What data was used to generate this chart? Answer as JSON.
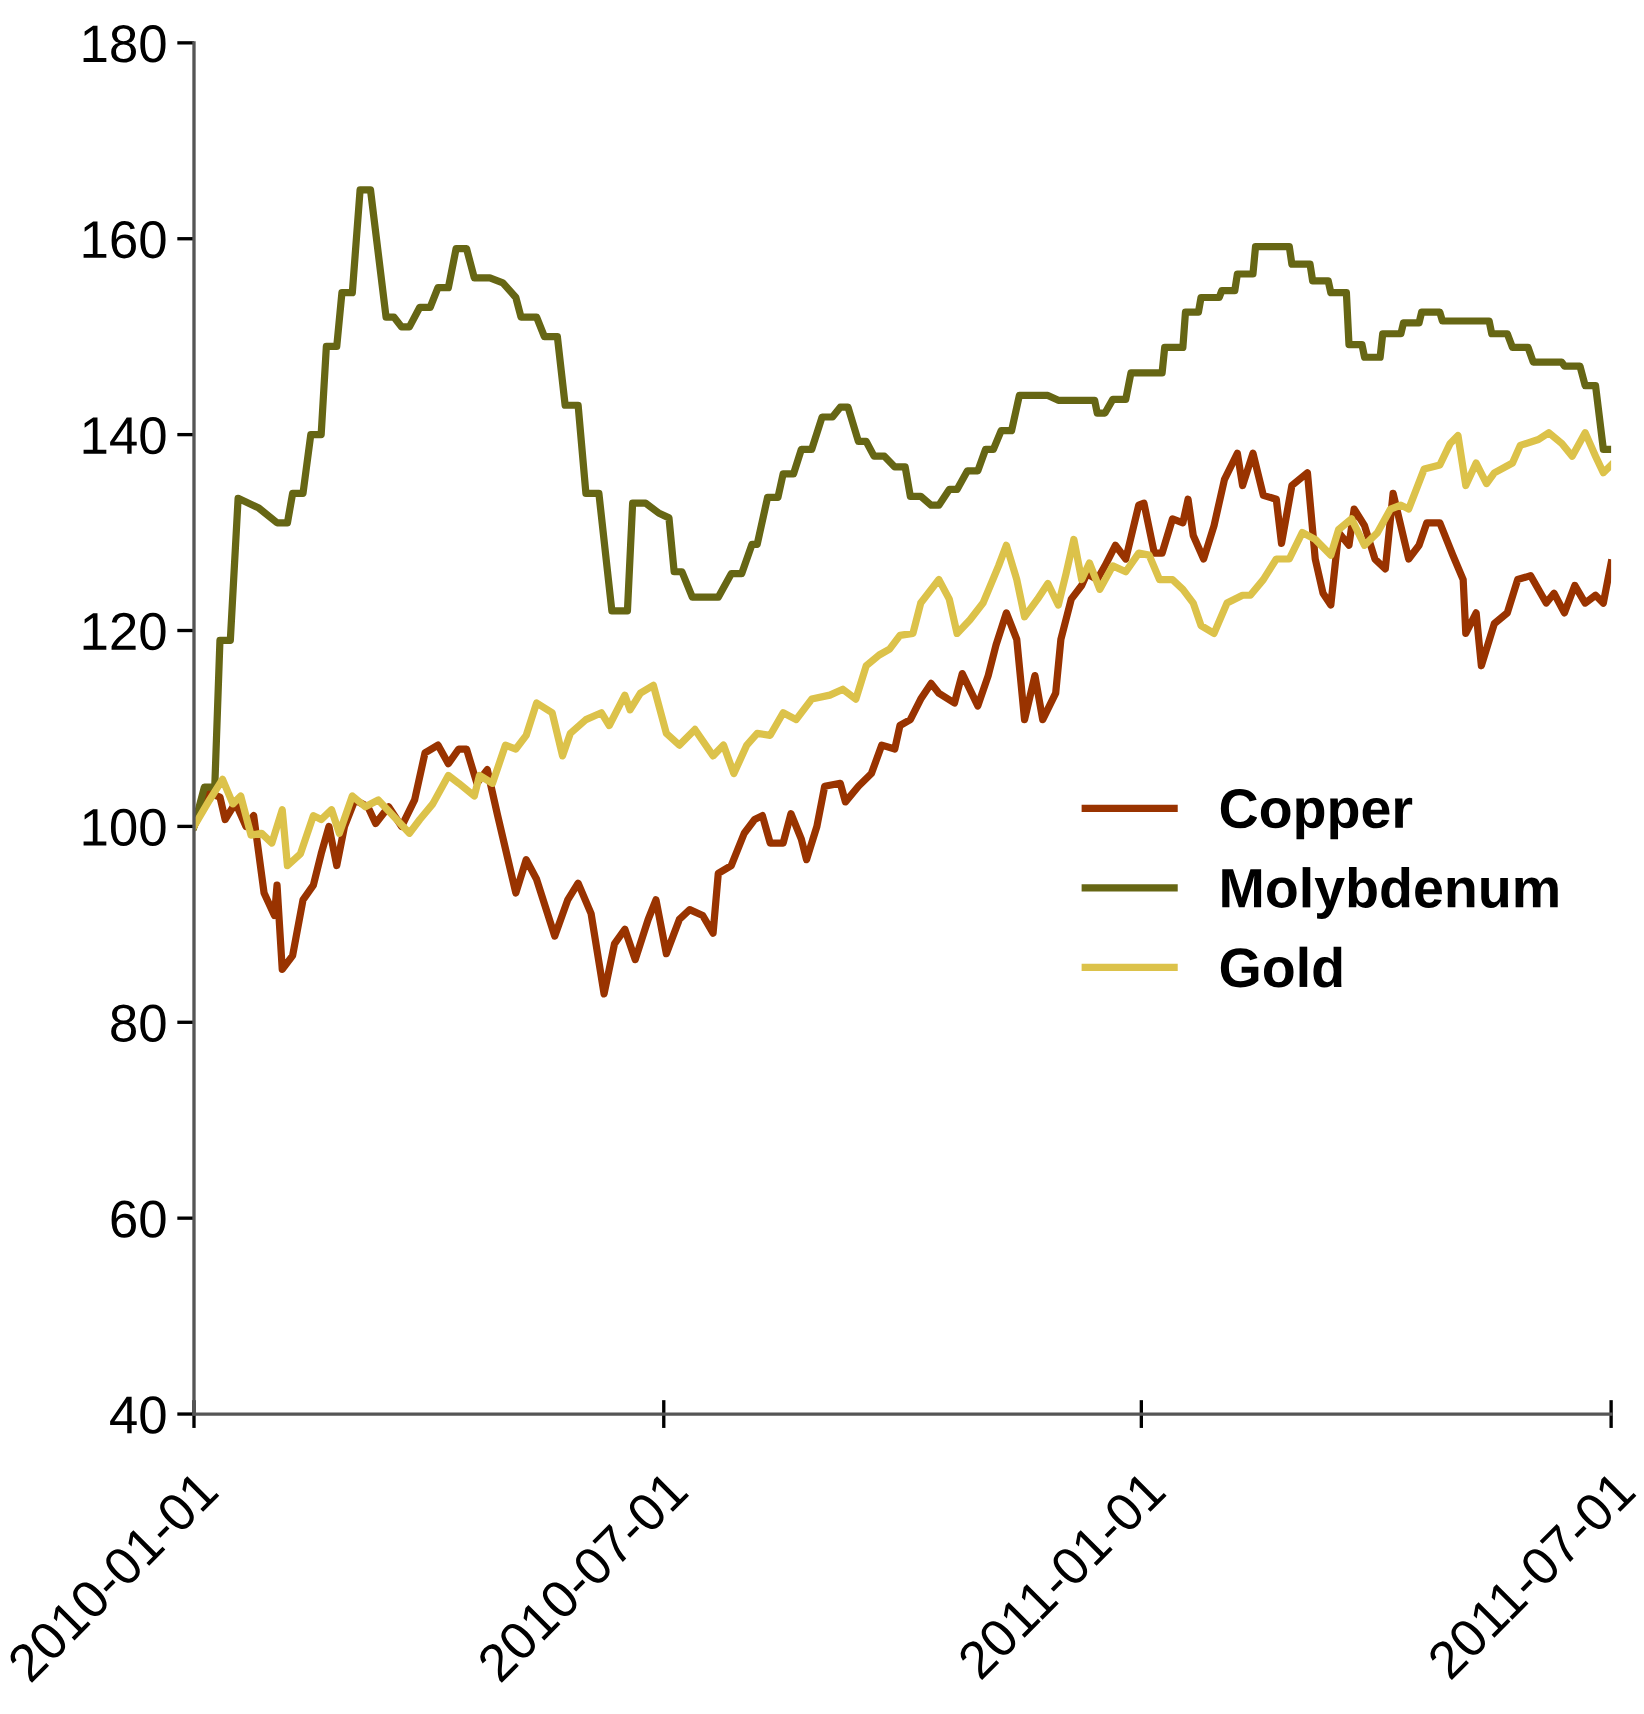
{
  "chart_data": {
    "type": "line",
    "ylim": [
      40,
      180
    ],
    "yticks": [
      40,
      60,
      80,
      100,
      120,
      140,
      160,
      180
    ],
    "xlim": [
      "2010-01-01",
      "2011-07-01"
    ],
    "xticks": [
      "2010-01-01",
      "2010-07-01",
      "2011-01-01",
      "2011-07-01"
    ],
    "grid": false,
    "legend": "right",
    "marker": "none",
    "line_style": "solid",
    "series": [
      {
        "name": "Copper",
        "color": "#993300",
        "x": [
          "2010-01-01",
          "2010-01-07",
          "2010-01-11",
          "2010-01-13",
          "2010-01-17",
          "2010-01-21",
          "2010-01-24",
          "2010-01-28",
          "2010-02-01",
          "2010-02-02",
          "2010-02-04",
          "2010-02-08",
          "2010-02-12",
          "2010-02-16",
          "2010-02-19",
          "2010-02-22",
          "2010-02-25",
          "2010-02-28",
          "2010-03-04",
          "2010-03-09",
          "2010-03-12",
          "2010-03-17",
          "2010-03-22",
          "2010-03-27",
          "2010-03-31",
          "2010-04-05",
          "2010-04-09",
          "2010-04-13",
          "2010-04-16",
          "2010-04-20",
          "2010-04-24",
          "2010-04-28",
          "2010-05-05",
          "2010-05-09",
          "2010-05-13",
          "2010-05-20",
          "2010-05-25",
          "2010-05-29",
          "2010-06-03",
          "2010-06-08",
          "2010-06-12",
          "2010-06-16",
          "2010-06-20",
          "2010-06-25",
          "2010-06-28",
          "2010-07-02",
          "2010-07-07",
          "2010-07-11",
          "2010-07-16",
          "2010-07-20",
          "2010-07-22",
          "2010-07-27",
          "2010-08-01",
          "2010-08-05",
          "2010-08-08",
          "2010-08-11",
          "2010-08-16",
          "2010-08-19",
          "2010-08-23",
          "2010-08-25",
          "2010-08-29",
          "2010-09-01",
          "2010-09-07",
          "2010-09-09",
          "2010-09-14",
          "2010-09-19",
          "2010-09-23",
          "2010-09-28",
          "2010-09-30",
          "2010-10-04",
          "2010-10-08",
          "2010-10-12",
          "2010-10-15",
          "2010-10-21",
          "2010-10-24",
          "2010-10-30",
          "2010-11-03",
          "2010-11-06",
          "2010-11-10",
          "2010-11-14",
          "2010-11-17",
          "2010-11-21",
          "2010-11-24",
          "2010-11-29",
          "2010-12-01",
          "2010-12-05",
          "2010-12-09",
          "2010-12-11",
          "2010-12-15",
          "2010-12-18",
          "2010-12-22",
          "2010-12-26",
          "2010-12-31",
          "2011-01-02",
          "2011-01-06",
          "2011-01-09",
          "2011-01-13",
          "2011-01-17",
          "2011-01-19",
          "2011-01-21",
          "2011-01-25",
          "2011-01-29",
          "2011-02-02",
          "2011-02-07",
          "2011-02-09",
          "2011-02-13",
          "2011-02-17",
          "2011-02-22",
          "2011-02-24",
          "2011-02-28",
          "2011-03-06",
          "2011-03-09",
          "2011-03-12",
          "2011-03-15",
          "2011-03-18",
          "2011-03-22",
          "2011-03-24",
          "2011-03-28",
          "2011-04-01",
          "2011-04-05",
          "2011-04-08",
          "2011-04-14",
          "2011-04-18",
          "2011-04-21",
          "2011-04-26",
          "2011-05-01",
          "2011-05-05",
          "2011-05-06",
          "2011-05-10",
          "2011-05-12",
          "2011-05-17",
          "2011-05-22",
          "2011-05-26",
          "2011-05-31",
          "2011-06-06",
          "2011-06-09",
          "2011-06-13",
          "2011-06-17",
          "2011-06-21",
          "2011-06-25",
          "2011-06-28",
          "2011-07-01"
        ],
        "values": [
          100,
          103.4,
          103,
          100.7,
          102.4,
          100,
          101.1,
          93.2,
          90.9,
          94,
          85.4,
          86.8,
          92.5,
          94,
          97.2,
          100,
          96,
          100,
          102.7,
          102,
          100.3,
          102,
          100,
          102.7,
          107.5,
          108.3,
          106.4,
          107.9,
          107.9,
          104.4,
          105.8,
          101.1,
          93.2,
          96.6,
          94.6,
          88.8,
          92.5,
          94.2,
          91.1,
          82.9,
          88,
          89.5,
          86.4,
          90.5,
          92.5,
          87,
          90.5,
          91.5,
          90.9,
          89.1,
          95.2,
          96,
          99.3,
          100.7,
          101.1,
          98.3,
          98.3,
          101.3,
          98.7,
          96.6,
          100,
          104.1,
          104.4,
          102.5,
          104.1,
          105.4,
          108.3,
          107.9,
          110.3,
          110.9,
          113,
          114.6,
          113.6,
          112.6,
          115.6,
          112.3,
          115.4,
          118.5,
          121.8,
          119.1,
          110.9,
          115.4,
          110.9,
          113.6,
          119.1,
          123.2,
          124.6,
          125.8,
          125.2,
          126.6,
          128.7,
          127.3,
          132.8,
          133,
          127.9,
          127.9,
          131.4,
          131,
          133.4,
          129.7,
          127.3,
          130.7,
          135.4,
          138.1,
          134.8,
          138.1,
          133.8,
          133.4,
          128.9,
          134.8,
          136.1,
          127.3,
          123.8,
          122.6,
          130,
          128.7,
          132.4,
          130.7,
          127.3,
          126.3,
          134,
          127.3,
          128.7,
          131,
          131,
          127.7,
          125.2,
          119.7,
          121.8,
          116.4,
          120.7,
          121.8,
          125.2,
          125.6,
          122.8,
          123.8,
          121.8,
          124.6,
          122.8,
          123.6,
          122.8,
          126.9
        ]
      },
      {
        "name": "Molybdenum",
        "color": "#666614",
        "x": [
          "2010-01-01",
          "2010-01-05",
          "2010-01-09",
          "2010-01-11",
          "2010-01-15",
          "2010-01-18",
          "2010-01-26",
          "2010-02-02",
          "2010-02-06",
          "2010-02-08",
          "2010-02-12",
          "2010-02-15",
          "2010-02-19",
          "2010-02-21",
          "2010-02-25",
          "2010-02-27",
          "2010-03-03",
          "2010-03-06",
          "2010-03-10",
          "2010-03-16",
          "2010-03-19",
          "2010-03-22",
          "2010-03-25",
          "2010-03-29",
          "2010-04-02",
          "2010-04-05",
          "2010-04-09",
          "2010-04-12",
          "2010-04-16",
          "2010-04-19",
          "2010-04-25",
          "2010-04-30",
          "2010-05-05",
          "2010-05-07",
          "2010-05-13",
          "2010-05-16",
          "2010-05-21",
          "2010-05-24",
          "2010-05-29",
          "2010-06-01",
          "2010-06-06",
          "2010-06-11",
          "2010-06-17",
          "2010-06-19",
          "2010-06-24",
          "2010-06-29",
          "2010-07-03",
          "2010-07-05",
          "2010-07-08",
          "2010-07-12",
          "2010-07-22",
          "2010-07-27",
          "2010-07-31",
          "2010-08-04",
          "2010-08-06",
          "2010-08-10",
          "2010-08-14",
          "2010-08-16",
          "2010-08-20",
          "2010-08-23",
          "2010-08-27",
          "2010-08-31",
          "2010-09-04",
          "2010-09-07",
          "2010-09-10",
          "2010-09-14",
          "2010-09-17",
          "2010-09-20",
          "2010-09-24",
          "2010-09-28",
          "2010-10-02",
          "2010-10-04",
          "2010-10-08",
          "2010-10-12",
          "2010-10-15",
          "2010-10-19",
          "2010-10-22",
          "2010-10-26",
          "2010-10-30",
          "2010-11-02",
          "2010-11-05",
          "2010-11-08",
          "2010-11-12",
          "2010-11-15",
          "2010-11-26",
          "2010-11-30",
          "2010-12-14",
          "2010-12-15",
          "2010-12-18",
          "2010-12-21",
          "2010-12-26",
          "2010-12-28",
          "2011-01-09",
          "2011-01-10",
          "2011-01-17",
          "2011-01-18",
          "2011-01-23",
          "2011-01-24",
          "2011-01-31",
          "2011-02-01",
          "2011-02-06",
          "2011-02-07",
          "2011-02-13",
          "2011-02-14",
          "2011-02-27",
          "2011-02-28",
          "2011-03-07",
          "2011-03-08",
          "2011-03-14",
          "2011-03-15",
          "2011-03-21",
          "2011-03-22",
          "2011-03-27",
          "2011-03-28",
          "2011-04-03",
          "2011-04-04",
          "2011-04-11",
          "2011-04-12",
          "2011-04-18",
          "2011-04-19",
          "2011-04-26",
          "2011-04-27",
          "2011-05-15",
          "2011-05-16",
          "2011-05-22",
          "2011-05-24",
          "2011-05-30",
          "2011-06-01",
          "2011-06-12",
          "2011-06-13",
          "2011-06-19",
          "2011-06-21",
          "2011-06-25",
          "2011-06-28",
          "2011-07-01"
        ],
        "values": [
          100,
          104,
          104,
          119,
          119,
          133.5,
          132.5,
          131,
          131,
          134,
          134,
          140,
          140,
          149,
          149,
          154.5,
          154.5,
          165,
          165,
          152,
          152,
          151,
          151,
          153,
          153,
          155,
          155,
          159,
          159,
          156,
          156,
          155.5,
          154,
          152,
          152,
          150,
          150,
          143,
          143,
          134,
          134,
          122,
          122,
          133,
          133,
          132,
          131.5,
          126,
          126,
          123.4,
          123.4,
          125.8,
          125.8,
          128.8,
          128.8,
          133.6,
          133.6,
          136,
          136,
          138.5,
          138.5,
          141.8,
          141.8,
          142.8,
          142.8,
          139.3,
          139.3,
          137.8,
          137.8,
          136.7,
          136.7,
          133.7,
          133.7,
          132.8,
          132.8,
          134.4,
          134.4,
          136.3,
          136.3,
          138.5,
          138.5,
          140.4,
          140.4,
          144,
          144,
          143.5,
          143.5,
          142.2,
          142.2,
          143.6,
          143.6,
          146.3,
          146.3,
          148.9,
          148.9,
          152.5,
          152.5,
          154,
          154,
          154.7,
          154.7,
          156.4,
          156.4,
          159.2,
          159.2,
          157.4,
          157.4,
          155.7,
          155.7,
          154.5,
          154.5,
          149.2,
          149.2,
          147.9,
          147.9,
          150.3,
          150.3,
          151.4,
          151.4,
          152.5,
          152.5,
          151.6,
          151.6,
          150.3,
          150.3,
          148.9,
          148.9,
          147.4,
          147.4,
          147,
          147,
          145,
          145,
          138.5,
          138.5
        ]
      },
      {
        "name": "Gold",
        "color": "#dcc24a",
        "x": [
          "2010-01-01",
          "2010-01-07",
          "2010-01-12",
          "2010-01-16",
          "2010-01-19",
          "2010-01-23",
          "2010-01-27",
          "2010-01-31",
          "2010-02-04",
          "2010-02-06",
          "2010-02-11",
          "2010-02-16",
          "2010-02-19",
          "2010-02-23",
          "2010-02-26",
          "2010-03-03",
          "2010-03-08",
          "2010-03-13",
          "2010-03-18",
          "2010-03-25",
          "2010-03-29",
          "2010-04-03",
          "2010-04-09",
          "2010-04-13",
          "2010-04-19",
          "2010-04-21",
          "2010-04-26",
          "2010-05-01",
          "2010-05-05",
          "2010-05-09",
          "2010-05-13",
          "2010-05-19",
          "2010-05-23",
          "2010-05-26",
          "2010-06-01",
          "2010-06-07",
          "2010-06-10",
          "2010-06-16",
          "2010-06-18",
          "2010-06-22",
          "2010-06-27",
          "2010-07-02",
          "2010-07-07",
          "2010-07-13",
          "2010-07-20",
          "2010-07-24",
          "2010-07-28",
          "2010-08-02",
          "2010-08-06",
          "2010-08-11",
          "2010-08-16",
          "2010-08-21",
          "2010-08-27",
          "2010-09-03",
          "2010-09-08",
          "2010-09-13",
          "2010-09-17",
          "2010-09-22",
          "2010-09-26",
          "2010-09-30",
          "2010-10-05",
          "2010-10-08",
          "2010-10-15",
          "2010-10-19",
          "2010-10-22",
          "2010-10-27",
          "2010-11-01",
          "2010-11-07",
          "2010-11-10",
          "2010-11-14",
          "2010-11-17",
          "2010-11-22",
          "2010-11-26",
          "2010-11-30",
          "2010-12-03",
          "2010-12-06",
          "2010-12-09",
          "2010-12-12",
          "2010-12-16",
          "2010-12-21",
          "2010-12-26",
          "2010-12-31",
          "2011-01-04",
          "2011-01-08",
          "2011-01-13",
          "2011-01-17",
          "2011-01-21",
          "2011-01-24",
          "2011-01-29",
          "2011-02-03",
          "2011-02-09",
          "2011-02-12",
          "2011-02-17",
          "2011-02-22",
          "2011-02-27",
          "2011-03-04",
          "2011-03-09",
          "2011-03-15",
          "2011-03-18",
          "2011-03-23",
          "2011-03-28",
          "2011-04-02",
          "2011-04-07",
          "2011-04-11",
          "2011-04-14",
          "2011-04-20",
          "2011-04-26",
          "2011-04-30",
          "2011-05-03",
          "2011-05-06",
          "2011-05-10",
          "2011-05-14",
          "2011-05-17",
          "2011-05-24",
          "2011-05-27",
          "2011-06-03",
          "2011-06-07",
          "2011-06-12",
          "2011-06-16",
          "2011-06-21",
          "2011-06-25",
          "2011-06-28",
          "2011-07-01"
        ],
        "values": [
          100,
          102.7,
          104.8,
          102.3,
          103.1,
          99.1,
          99.3,
          98.3,
          101.7,
          96,
          97.2,
          101.1,
          100.7,
          101.7,
          99.3,
          103.1,
          102,
          102.7,
          101.3,
          99.3,
          100.7,
          102.3,
          105.2,
          104.4,
          103.1,
          105.2,
          104.4,
          108.3,
          107.9,
          109.3,
          112.6,
          111.6,
          107.2,
          109.5,
          110.9,
          111.6,
          110.3,
          113.4,
          111.9,
          113.6,
          114.4,
          109.5,
          108.3,
          109.9,
          107.2,
          108.3,
          105.4,
          108.3,
          109.5,
          109.3,
          111.6,
          110.9,
          113,
          113.4,
          114,
          113,
          116.4,
          117.5,
          118.1,
          119.5,
          119.7,
          122.8,
          125.2,
          123.2,
          119.7,
          121.1,
          122.8,
          126.6,
          128.7,
          125.2,
          121.4,
          123.2,
          124.8,
          122.6,
          125.8,
          129.3,
          125.2,
          126.9,
          124.2,
          126.6,
          126,
          127.9,
          127.7,
          125.2,
          125.2,
          124.2,
          122.8,
          120.5,
          119.7,
          122.8,
          123.6,
          123.6,
          125.2,
          127.3,
          127.3,
          130,
          129.3,
          127.7,
          130.3,
          131.4,
          128.7,
          130,
          132.4,
          132.8,
          132.4,
          136.5,
          136.9,
          139.1,
          139.9,
          134.8,
          137.1,
          135,
          136.1,
          137.1,
          138.9,
          139.5,
          140.2,
          139.1,
          137.8,
          140.2,
          137.8,
          136.1,
          136.9
        ]
      }
    ]
  }
}
